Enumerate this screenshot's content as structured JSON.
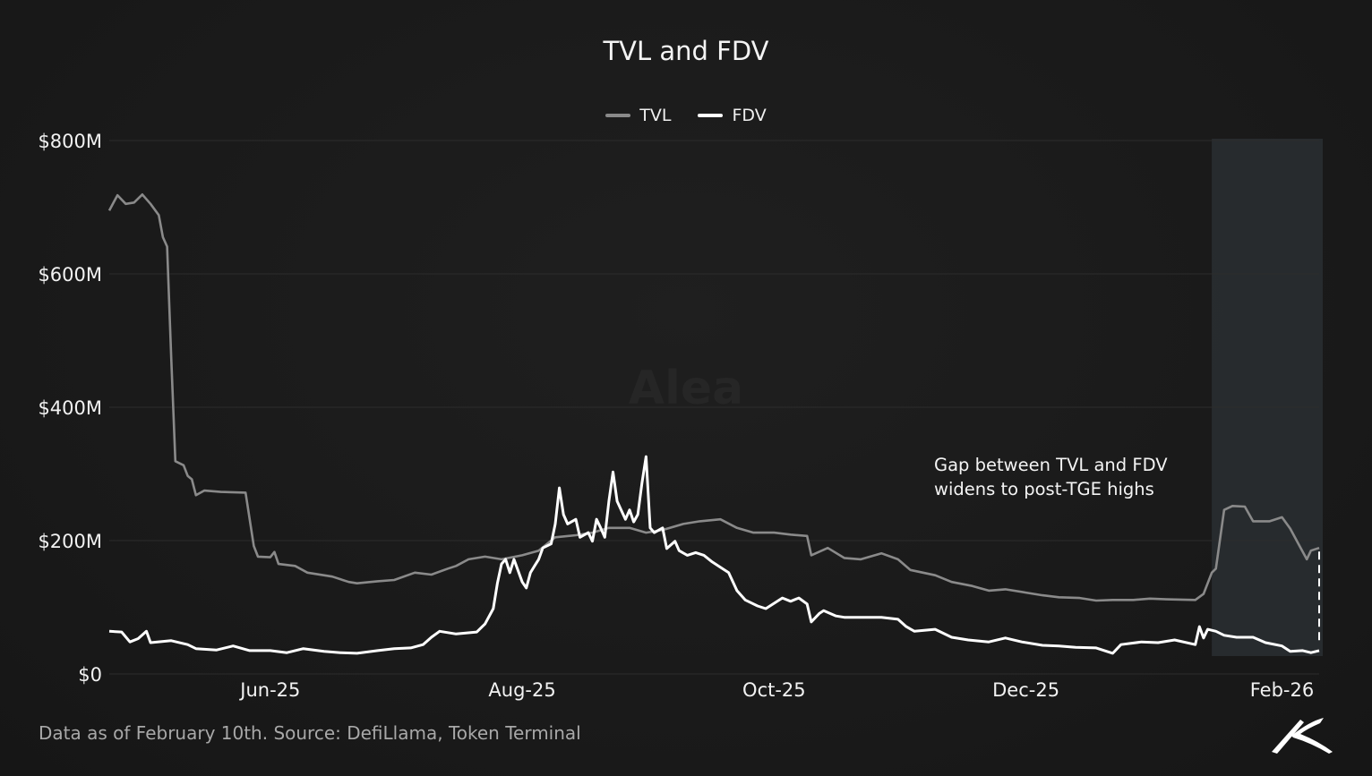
{
  "chart_data": {
    "type": "line",
    "title": "TVL and FDV",
    "xlabel": "",
    "ylabel": "",
    "xlim": [
      "2025-04-23",
      "2026-02-10"
    ],
    "ylim": [
      0,
      800
    ],
    "y_ticks": [
      0,
      200,
      400,
      600,
      800
    ],
    "y_tick_labels": [
      "$0",
      "$200M",
      "$400M",
      "$600M",
      "$800M"
    ],
    "x_ticks": [
      "2025-06-01",
      "2025-08-01",
      "2025-10-01",
      "2025-12-01",
      "2026-02-01"
    ],
    "x_tick_labels": [
      "Jun-25",
      "Aug-25",
      "Oct-25",
      "Dec-25",
      "Feb-26"
    ],
    "grid": "horizontal",
    "legend": "top-center",
    "units": "USD millions",
    "highlight": {
      "start": "2026-01-15",
      "end": "2026-02-10"
    },
    "annotation": "Gap between TVL and FDV widens to post-TGE highs",
    "series": [
      {
        "name": "TVL",
        "color": "#8a8a8a",
        "points": [
          [
            "2025-04-23",
            695
          ],
          [
            "2025-04-25",
            718
          ],
          [
            "2025-04-27",
            705
          ],
          [
            "2025-04-29",
            707
          ],
          [
            "2025-05-01",
            719
          ],
          [
            "2025-05-03",
            705
          ],
          [
            "2025-05-05",
            688
          ],
          [
            "2025-05-06",
            655
          ],
          [
            "2025-05-07",
            641
          ],
          [
            "2025-05-08",
            474
          ],
          [
            "2025-05-09",
            319
          ],
          [
            "2025-05-11",
            313
          ],
          [
            "2025-05-12",
            297
          ],
          [
            "2025-05-13",
            292
          ],
          [
            "2025-05-14",
            268
          ],
          [
            "2025-05-16",
            275
          ],
          [
            "2025-05-20",
            273
          ],
          [
            "2025-05-26",
            272
          ],
          [
            "2025-05-28",
            192
          ],
          [
            "2025-05-29",
            176
          ],
          [
            "2025-06-01",
            175
          ],
          [
            "2025-06-02",
            183
          ],
          [
            "2025-06-03",
            165
          ],
          [
            "2025-06-07",
            162
          ],
          [
            "2025-06-10",
            152
          ],
          [
            "2025-06-16",
            146
          ],
          [
            "2025-06-20",
            138
          ],
          [
            "2025-06-22",
            136
          ],
          [
            "2025-06-27",
            139
          ],
          [
            "2025-07-01",
            141
          ],
          [
            "2025-07-06",
            152
          ],
          [
            "2025-07-10",
            149
          ],
          [
            "2025-07-14",
            158
          ],
          [
            "2025-07-16",
            162
          ],
          [
            "2025-07-19",
            172
          ],
          [
            "2025-07-23",
            176
          ],
          [
            "2025-07-27",
            172
          ],
          [
            "2025-08-01",
            178
          ],
          [
            "2025-08-05",
            185
          ],
          [
            "2025-08-09",
            205
          ],
          [
            "2025-08-14",
            208
          ],
          [
            "2025-08-18",
            212
          ],
          [
            "2025-08-22",
            219
          ],
          [
            "2025-08-27",
            219
          ],
          [
            "2025-08-31",
            212
          ],
          [
            "2025-09-04",
            216
          ],
          [
            "2025-09-09",
            225
          ],
          [
            "2025-09-13",
            229
          ],
          [
            "2025-09-18",
            232
          ],
          [
            "2025-09-22",
            219
          ],
          [
            "2025-09-26",
            212
          ],
          [
            "2025-10-01",
            212
          ],
          [
            "2025-10-05",
            209
          ],
          [
            "2025-10-09",
            207
          ],
          [
            "2025-10-10",
            178
          ],
          [
            "2025-10-14",
            189
          ],
          [
            "2025-10-18",
            174
          ],
          [
            "2025-10-22",
            172
          ],
          [
            "2025-10-27",
            181
          ],
          [
            "2025-10-31",
            172
          ],
          [
            "2025-11-03",
            156
          ],
          [
            "2025-11-09",
            148
          ],
          [
            "2025-11-13",
            138
          ],
          [
            "2025-11-18",
            132
          ],
          [
            "2025-11-22",
            125
          ],
          [
            "2025-11-26",
            127
          ],
          [
            "2025-12-01",
            122
          ],
          [
            "2025-12-05",
            118
          ],
          [
            "2025-12-09",
            115
          ],
          [
            "2025-12-14",
            114
          ],
          [
            "2025-12-18",
            110
          ],
          [
            "2025-12-22",
            111
          ],
          [
            "2025-12-27",
            111
          ],
          [
            "2025-12-31",
            113
          ],
          [
            "2026-01-04",
            112
          ],
          [
            "2026-01-11",
            111
          ],
          [
            "2026-01-13",
            120
          ],
          [
            "2026-01-15",
            152
          ],
          [
            "2026-01-16",
            158
          ],
          [
            "2026-01-18",
            246
          ],
          [
            "2026-01-20",
            252
          ],
          [
            "2026-01-23",
            251
          ],
          [
            "2026-01-25",
            229
          ],
          [
            "2026-01-29",
            229
          ],
          [
            "2026-02-01",
            235
          ],
          [
            "2026-02-03",
            218
          ],
          [
            "2026-02-05",
            195
          ],
          [
            "2026-02-07",
            172
          ],
          [
            "2026-02-08",
            185
          ],
          [
            "2026-02-10",
            189
          ]
        ]
      },
      {
        "name": "FDV",
        "color": "#ffffff",
        "points": [
          [
            "2025-04-23",
            64
          ],
          [
            "2025-04-26",
            63
          ],
          [
            "2025-04-28",
            48
          ],
          [
            "2025-04-30",
            53
          ],
          [
            "2025-05-02",
            64
          ],
          [
            "2025-05-03",
            47
          ],
          [
            "2025-05-08",
            50
          ],
          [
            "2025-05-12",
            44
          ],
          [
            "2025-05-14",
            38
          ],
          [
            "2025-05-19",
            36
          ],
          [
            "2025-05-23",
            42
          ],
          [
            "2025-05-27",
            35
          ],
          [
            "2025-06-01",
            35
          ],
          [
            "2025-06-05",
            32
          ],
          [
            "2025-06-09",
            38
          ],
          [
            "2025-06-14",
            34
          ],
          [
            "2025-06-18",
            32
          ],
          [
            "2025-06-22",
            31
          ],
          [
            "2025-06-27",
            35
          ],
          [
            "2025-07-01",
            38
          ],
          [
            "2025-07-05",
            39
          ],
          [
            "2025-07-08",
            44
          ],
          [
            "2025-07-10",
            55
          ],
          [
            "2025-07-12",
            64
          ],
          [
            "2025-07-16",
            60
          ],
          [
            "2025-07-21",
            63
          ],
          [
            "2025-07-23",
            75
          ],
          [
            "2025-07-25",
            98
          ],
          [
            "2025-07-26",
            136
          ],
          [
            "2025-07-27",
            165
          ],
          [
            "2025-07-28",
            172
          ],
          [
            "2025-07-29",
            152
          ],
          [
            "2025-07-30",
            172
          ],
          [
            "2025-08-01",
            138
          ],
          [
            "2025-08-02",
            129
          ],
          [
            "2025-08-03",
            152
          ],
          [
            "2025-08-04",
            162
          ],
          [
            "2025-08-05",
            172
          ],
          [
            "2025-08-06",
            189
          ],
          [
            "2025-08-08",
            195
          ],
          [
            "2025-08-09",
            225
          ],
          [
            "2025-08-10",
            279
          ],
          [
            "2025-08-11",
            239
          ],
          [
            "2025-08-12",
            225
          ],
          [
            "2025-08-14",
            232
          ],
          [
            "2025-08-15",
            205
          ],
          [
            "2025-08-17",
            212
          ],
          [
            "2025-08-18",
            199
          ],
          [
            "2025-08-19",
            232
          ],
          [
            "2025-08-20",
            219
          ],
          [
            "2025-08-21",
            205
          ],
          [
            "2025-08-22",
            259
          ],
          [
            "2025-08-23",
            303
          ],
          [
            "2025-08-24",
            259
          ],
          [
            "2025-08-26",
            232
          ],
          [
            "2025-08-27",
            246
          ],
          [
            "2025-08-28",
            228
          ],
          [
            "2025-08-29",
            239
          ],
          [
            "2025-08-30",
            286
          ],
          [
            "2025-08-31",
            326
          ],
          [
            "2025-09-01",
            219
          ],
          [
            "2025-09-02",
            212
          ],
          [
            "2025-09-04",
            219
          ],
          [
            "2025-09-05",
            188
          ],
          [
            "2025-09-07",
            199
          ],
          [
            "2025-09-08",
            185
          ],
          [
            "2025-09-10",
            178
          ],
          [
            "2025-09-12",
            182
          ],
          [
            "2025-09-14",
            178
          ],
          [
            "2025-09-16",
            168
          ],
          [
            "2025-09-20",
            152
          ],
          [
            "2025-09-22",
            125
          ],
          [
            "2025-09-24",
            111
          ],
          [
            "2025-09-27",
            102
          ],
          [
            "2025-09-29",
            98
          ],
          [
            "2025-10-03",
            114
          ],
          [
            "2025-10-05",
            109
          ],
          [
            "2025-10-07",
            114
          ],
          [
            "2025-10-09",
            105
          ],
          [
            "2025-10-10",
            78
          ],
          [
            "2025-10-12",
            91
          ],
          [
            "2025-10-13",
            95
          ],
          [
            "2025-10-16",
            87
          ],
          [
            "2025-10-18",
            85
          ],
          [
            "2025-10-22",
            85
          ],
          [
            "2025-10-27",
            85
          ],
          [
            "2025-10-31",
            82
          ],
          [
            "2025-11-02",
            71
          ],
          [
            "2025-11-04",
            64
          ],
          [
            "2025-11-09",
            67
          ],
          [
            "2025-11-13",
            55
          ],
          [
            "2025-11-17",
            51
          ],
          [
            "2025-11-22",
            48
          ],
          [
            "2025-11-26",
            54
          ],
          [
            "2025-11-30",
            48
          ],
          [
            "2025-12-05",
            43
          ],
          [
            "2025-12-09",
            42
          ],
          [
            "2025-12-13",
            40
          ],
          [
            "2025-12-18",
            39
          ],
          [
            "2025-12-22",
            31
          ],
          [
            "2025-12-24",
            44
          ],
          [
            "2025-12-29",
            48
          ],
          [
            "2026-01-02",
            47
          ],
          [
            "2026-01-06",
            51
          ],
          [
            "2026-01-11",
            44
          ],
          [
            "2026-01-12",
            71
          ],
          [
            "2026-01-13",
            54
          ],
          [
            "2026-01-14",
            67
          ],
          [
            "2026-01-16",
            64
          ],
          [
            "2026-01-18",
            58
          ],
          [
            "2026-01-21",
            55
          ],
          [
            "2026-01-25",
            55
          ],
          [
            "2026-01-28",
            47
          ],
          [
            "2026-02-01",
            42
          ],
          [
            "2026-02-03",
            34
          ],
          [
            "2026-02-06",
            35
          ],
          [
            "2026-02-08",
            32
          ],
          [
            "2026-02-10",
            35
          ]
        ]
      }
    ]
  },
  "watermark": "Alea",
  "footer": "Data as of February 10th. Source: DefiLlama, Token Terminal",
  "annotation_lines": [
    "Gap between TVL and FDV",
    "widens to post-TGE highs"
  ],
  "logo": "Alea logo"
}
